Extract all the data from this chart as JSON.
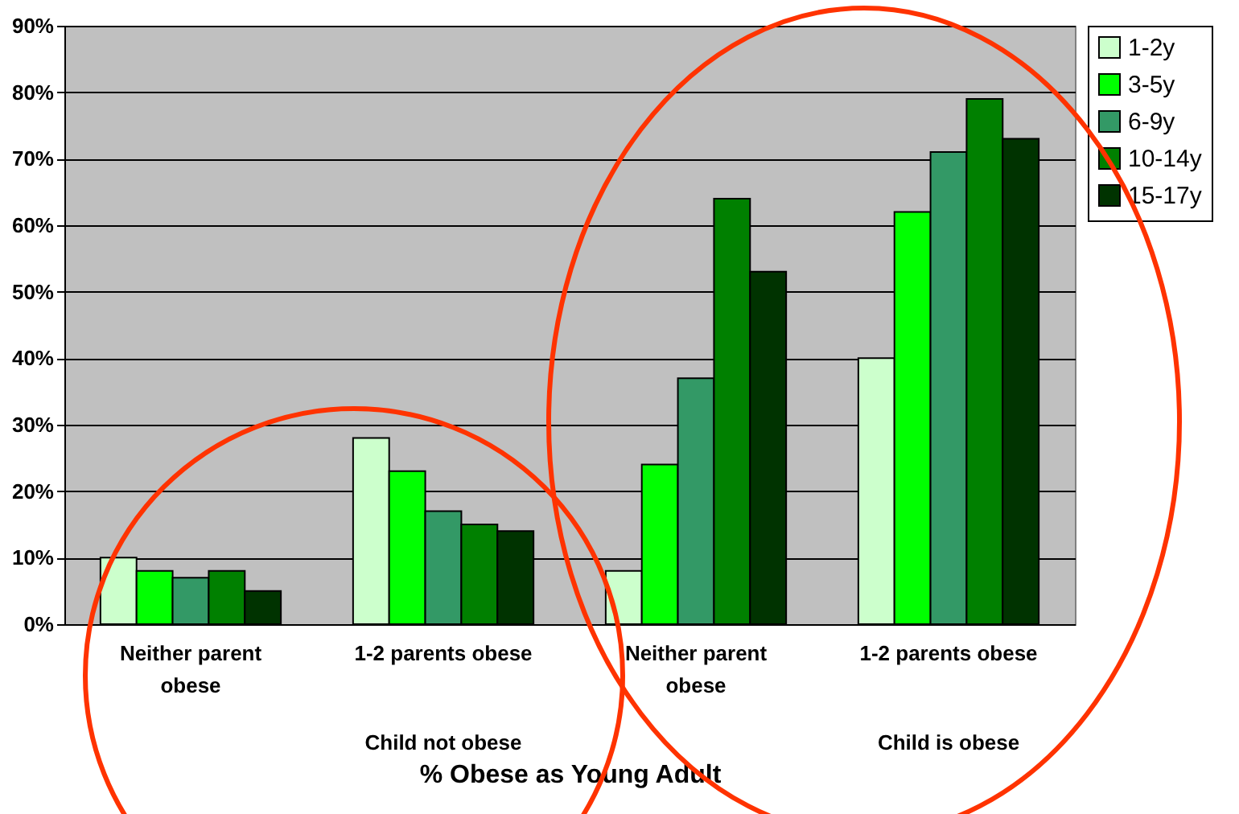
{
  "chart_data": {
    "type": "bar",
    "xlabel": "% Obese as Young Adult",
    "categories": [
      "Neither parent obese",
      "1-2 parents obese",
      "Neither parent obese",
      "1-2 parents obese"
    ],
    "annotations": [
      "Child not obese",
      "Child is obese"
    ],
    "series": [
      {
        "name": "1-2y",
        "color": "#ccffcc",
        "values": [
          10,
          28,
          8,
          40
        ]
      },
      {
        "name": "3-5y",
        "color": "#00ff00",
        "values": [
          8,
          23,
          24,
          62
        ]
      },
      {
        "name": "6-9y",
        "color": "#339966",
        "values": [
          7,
          17,
          37,
          71
        ]
      },
      {
        "name": "10-14y",
        "color": "#008000",
        "values": [
          8,
          15,
          64,
          79
        ]
      },
      {
        "name": "15-17y",
        "color": "#003300",
        "values": [
          5,
          14,
          53,
          73
        ]
      }
    ],
    "ylim": [
      0,
      90
    ],
    "yticks": [
      {
        "value": 0,
        "label": "0%"
      },
      {
        "value": 10,
        "label": "10%"
      },
      {
        "value": 20,
        "label": "20%"
      },
      {
        "value": 30,
        "label": "30%"
      },
      {
        "value": 40,
        "label": "40%"
      },
      {
        "value": 50,
        "label": "50%"
      },
      {
        "value": 60,
        "label": "60%"
      },
      {
        "value": 70,
        "label": "70%"
      },
      {
        "value": 80,
        "label": "80%"
      },
      {
        "value": 90,
        "label": "90%"
      }
    ],
    "grid": "y",
    "legend": "right"
  }
}
